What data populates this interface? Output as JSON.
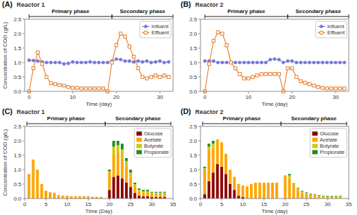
{
  "chart_data": [
    {
      "type": "line",
      "title": "(A)",
      "subtitle": "Reactor 1",
      "x_label": "Time (day)",
      "y_label": "Concentration of COD (g/L)",
      "x": [
        0,
        1,
        2,
        3,
        4,
        5,
        6,
        7,
        8,
        9,
        10,
        11,
        12,
        13,
        14,
        15,
        16,
        17,
        18,
        19,
        20,
        21,
        22,
        23,
        24,
        25,
        26,
        27,
        28,
        29,
        30,
        31,
        32
      ],
      "series": [
        {
          "name": "Influent",
          "color": "#7878d8",
          "marker": "circle",
          "values": [
            1.08,
            1.07,
            1.05,
            1.02,
            1.0,
            1.0,
            1.0,
            1.0,
            0.95,
            0.97,
            1.02,
            1.0,
            1.0,
            1.0,
            1.02,
            1.0,
            1.0,
            1.0,
            1.0,
            1.05,
            1.12,
            1.1,
            1.05,
            1.05,
            1.02,
            1.05,
            1.02,
            1.05,
            1.0,
            1.02,
            1.05,
            1.0,
            1.02
          ]
        },
        {
          "name": "Effluent",
          "color": "#e87820",
          "marker": "open-square",
          "values": [
            0.0,
            0.8,
            1.35,
            0.95,
            0.5,
            0.28,
            0.25,
            0.22,
            0.2,
            0.15,
            0.12,
            0.12,
            0.1,
            0.1,
            0.1,
            0.1,
            0.1,
            0.1,
            0.0,
            1.0,
            1.6,
            2.0,
            1.9,
            1.55,
            1.2,
            0.8,
            0.5,
            0.45,
            0.5,
            0.55,
            0.5,
            0.55,
            0.5
          ]
        }
      ],
      "xlim": [
        -1,
        33
      ],
      "xticks": [
        0,
        10,
        20,
        30
      ],
      "ylim": [
        0,
        2.5
      ],
      "yticks": [
        {
          "value": 0,
          "label": "0.0"
        },
        0.5,
        {
          "value": 1,
          "label": "1.0"
        },
        1.5,
        {
          "value": 2,
          "label": "2.0"
        },
        2.5
      ],
      "annotations": [
        {
          "text": "Primary phase",
          "x_start": 0,
          "x_end": 19
        },
        {
          "text": "Secondary phase",
          "x_start": 19,
          "x_end": 33
        }
      ],
      "legend": "upper right",
      "grid": false
    },
    {
      "type": "line",
      "title": "(B)",
      "subtitle": "Reactor 2",
      "x_label": "Time (day)",
      "x": [
        0,
        1,
        2,
        3,
        4,
        5,
        6,
        7,
        8,
        9,
        10,
        11,
        12,
        13,
        14,
        15,
        16,
        17,
        18,
        19,
        20,
        21,
        22,
        23,
        24,
        25,
        26,
        27,
        28,
        29,
        30,
        31,
        32
      ],
      "series": [
        {
          "name": "Influent",
          "color": "#7878d8",
          "marker": "circle",
          "values": [
            1.05,
            1.05,
            1.05,
            1.0,
            1.0,
            1.0,
            1.0,
            1.0,
            1.0,
            1.0,
            1.0,
            1.0,
            1.0,
            1.0,
            1.0,
            1.1,
            1.12,
            1.1,
            1.0,
            1.05,
            1.05,
            1.0,
            1.0,
            1.0,
            1.0,
            1.0,
            1.0,
            1.0,
            1.0,
            1.0,
            1.0,
            1.0,
            1.0
          ]
        },
        {
          "name": "Effluent",
          "color": "#e87820",
          "marker": "open-square",
          "values": [
            0.0,
            0.95,
            1.75,
            2.05,
            2.0,
            1.6,
            1.0,
            0.8,
            0.6,
            0.45,
            0.45,
            0.5,
            0.55,
            0.6,
            0.6,
            0.6,
            0.6,
            0.6,
            0.0,
            0.8,
            0.8,
            0.5,
            0.35,
            0.3,
            0.25,
            0.2,
            0.15,
            0.12,
            0.1,
            0.1,
            0.1,
            0.1,
            0.1
          ]
        }
      ],
      "xlim": [
        -1,
        33
      ],
      "xticks": [
        0,
        10,
        20,
        30
      ],
      "ylim": [
        0,
        2.5
      ],
      "yticks": [
        {
          "value": 0,
          "label": "0.0"
        },
        0.5,
        {
          "value": 1,
          "label": "1.0"
        },
        1.5,
        {
          "value": 2,
          "label": "2.0"
        },
        2.5
      ],
      "annotations": [
        {
          "text": "Primary phase",
          "x_start": 0,
          "x_end": 19
        },
        {
          "text": "Secondary phase",
          "x_start": 19,
          "x_end": 33
        }
      ],
      "legend": "upper right",
      "grid": false
    },
    {
      "type": "bar",
      "stacked": true,
      "title": "(C)",
      "subtitle": "Reactor 1",
      "x_label": "Time (Day)",
      "y_label": "Concentration of COD (g/L)",
      "x": [
        1,
        2,
        3,
        4,
        5,
        6,
        7,
        8,
        9,
        10,
        11,
        12,
        13,
        14,
        15,
        16,
        17,
        18,
        20,
        21,
        22,
        23,
        24,
        25,
        26,
        27,
        28,
        29,
        30,
        31,
        32,
        33
      ],
      "series": [
        {
          "name": "Glucose",
          "color": "#8b0000",
          "values": [
            0.0,
            0.0,
            0.0,
            0.0,
            0.0,
            0.0,
            0.0,
            0.0,
            0.0,
            0.0,
            0.0,
            0.0,
            0.0,
            0.0,
            0.0,
            0.0,
            0.0,
            0.0,
            0.3,
            0.75,
            0.8,
            0.7,
            0.55,
            0.4,
            0.2,
            0.1,
            0.08,
            0.08,
            0.05,
            0.05,
            0.05,
            0.05
          ]
        },
        {
          "name": "Acetate",
          "color": "#ffa500",
          "values": [
            0.85,
            1.35,
            1.0,
            0.5,
            0.27,
            0.22,
            0.2,
            0.12,
            0.1,
            0.1,
            0.08,
            0.08,
            0.08,
            0.08,
            0.08,
            0.06,
            0.06,
            0.06,
            0.65,
            0.75,
            0.8,
            0.7,
            0.55,
            0.35,
            0.2,
            0.15,
            0.12,
            0.12,
            0.12,
            0.12,
            0.12,
            0.12
          ]
        },
        {
          "name": "Butyrate",
          "color": "#d4c800",
          "values": [
            0.0,
            0.0,
            0.0,
            0.0,
            0.0,
            0.0,
            0.0,
            0.0,
            0.0,
            0.0,
            0.0,
            0.0,
            0.0,
            0.0,
            0.0,
            0.0,
            0.0,
            0.0,
            0.0,
            0.3,
            0.25,
            0.3,
            0.2,
            0.15,
            0.1,
            0.05,
            0.05,
            0.05,
            0.03,
            0.03,
            0.03,
            0.03
          ]
        },
        {
          "name": "Propionate",
          "color": "#228B22",
          "values": [
            0.0,
            0.0,
            0.0,
            0.0,
            0.0,
            0.0,
            0.0,
            0.0,
            0.0,
            0.0,
            0.0,
            0.0,
            0.0,
            0.0,
            0.0,
            0.0,
            0.0,
            0.0,
            0.05,
            0.2,
            0.15,
            0.2,
            0.1,
            0.1,
            0.05,
            0.05,
            0.05,
            0.05,
            0.03,
            0.03,
            0.03,
            0.03
          ]
        }
      ],
      "xlim": [
        0,
        35
      ],
      "xticks": [
        0,
        5,
        10,
        15,
        20,
        25,
        30,
        35
      ],
      "ylim": [
        0,
        2.5
      ],
      "yticks": [
        {
          "value": 0,
          "label": "0.0"
        },
        0.5,
        {
          "value": 1,
          "label": "1.0"
        },
        1.5,
        {
          "value": 2,
          "label": "2.0"
        },
        2.5
      ],
      "annotations": [
        {
          "text": "Primary phase",
          "x_start": 0.5,
          "x_end": 19
        },
        {
          "text": "Secondary phase",
          "x_start": 19,
          "x_end": 34.5
        }
      ],
      "legend": "upper right",
      "grid": false
    },
    {
      "type": "bar",
      "stacked": true,
      "title": "(D)",
      "subtitle": "Reactor 2",
      "x_label": "Time (day)",
      "x": [
        1,
        2,
        3,
        4,
        5,
        6,
        7,
        8,
        9,
        10,
        11,
        12,
        13,
        14,
        15,
        16,
        17,
        18,
        20,
        21,
        22,
        23,
        24,
        25,
        26,
        27,
        28,
        29,
        30,
        31,
        32,
        33
      ],
      "series": [
        {
          "name": "Glucose",
          "color": "#8b0000",
          "values": [
            0.15,
            0.6,
            0.9,
            1.2,
            1.1,
            0.85,
            0.5,
            0.3,
            0.1,
            0.05,
            0.0,
            0.0,
            0.0,
            0.0,
            0.0,
            0.0,
            0.0,
            0.0,
            0.0,
            0.0,
            0.0,
            0.0,
            0.0,
            0.0,
            0.0,
            0.0,
            0.0,
            0.0,
            0.0,
            0.0,
            0.0,
            0.0
          ]
        },
        {
          "name": "Acetate",
          "color": "#ffa500",
          "values": [
            0.85,
            1.1,
            0.85,
            0.85,
            0.85,
            0.7,
            0.5,
            0.45,
            0.4,
            0.4,
            0.42,
            0.5,
            0.55,
            0.55,
            0.55,
            0.55,
            0.55,
            0.55,
            0.8,
            0.7,
            0.45,
            0.3,
            0.2,
            0.15,
            0.12,
            0.1,
            0.08,
            0.05,
            0.05,
            0.05,
            0.05,
            0.05
          ]
        },
        {
          "name": "Butyrate",
          "color": "#d4c800",
          "values": [
            0.05,
            0.1,
            0.15,
            0.0,
            0.0,
            0.0,
            0.0,
            0.0,
            0.0,
            0.0,
            0.0,
            0.0,
            0.0,
            0.0,
            0.0,
            0.0,
            0.0,
            0.0,
            0.0,
            0.1,
            0.05,
            0.05,
            0.05,
            0.05,
            0.03,
            0.03,
            0.02,
            0.02,
            0.02,
            0.02,
            0.02,
            0.02
          ]
        },
        {
          "name": "Propionate",
          "color": "#228B22",
          "values": [
            0.05,
            0.1,
            0.1,
            0.0,
            0.0,
            0.0,
            0.0,
            0.0,
            0.0,
            0.0,
            0.0,
            0.0,
            0.0,
            0.0,
            0.0,
            0.0,
            0.0,
            0.0,
            0.0,
            0.05,
            0.02,
            0.02,
            0.02,
            0.02,
            0.02,
            0.02,
            0.02,
            0.02,
            0.02,
            0.02,
            0.02,
            0.02
          ]
        }
      ],
      "xlim": [
        0,
        35
      ],
      "xticks": [
        0,
        5,
        10,
        15,
        20,
        25,
        30,
        35
      ],
      "ylim": [
        0,
        2.5
      ],
      "yticks": [
        {
          "value": 0,
          "label": "0.0"
        },
        0.5,
        {
          "value": 1,
          "label": "1.0"
        },
        1.5,
        {
          "value": 2,
          "label": "2.0"
        },
        2.5
      ],
      "annotations": [
        {
          "text": "Primary phase",
          "x_start": 0.5,
          "x_end": 19
        },
        {
          "text": "Secondary phase",
          "x_start": 19,
          "x_end": 34.5
        }
      ],
      "legend": "upper right",
      "grid": false
    }
  ]
}
